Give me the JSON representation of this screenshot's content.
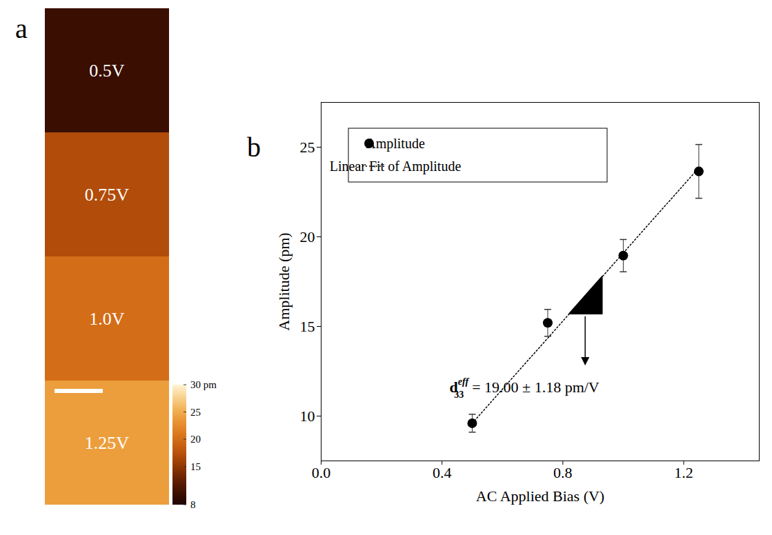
{
  "chart_data": [
    {
      "type": "image_strips",
      "panel": "a",
      "maps": [
        {
          "label": "0.5V",
          "value": 10
        },
        {
          "label": "0.75V",
          "value": 17
        },
        {
          "label": "1.0V",
          "value": 20
        },
        {
          "label": "1.25V",
          "value": 24
        }
      ],
      "colorbar": {
        "range": [
          8,
          30
        ],
        "ticks": [
          8,
          15,
          20,
          25,
          {
            "value": 30,
            "label": "30 pm"
          }
        ]
      }
    },
    {
      "type": "scatter",
      "panel": "b",
      "x_label": "AC Applied Bias (V)",
      "y_label": "Amplitude (pm)",
      "x": [
        0.5,
        0.75,
        1.0,
        1.25
      ],
      "series": [
        {
          "name": "Amplitude",
          "color": "#000000",
          "marker": "circle",
          "values": [
            9.6,
            15.2,
            18.95,
            23.65
          ],
          "errors": [
            0.5,
            0.75,
            0.9,
            1.5
          ]
        },
        {
          "name": "Linear Fit of Amplitude",
          "type": "line",
          "line_style": "dotted",
          "color": "#000000",
          "x": [
            0.5,
            1.25
          ],
          "values": [
            9.6,
            23.85
          ]
        }
      ],
      "xlim": [
        0,
        1.45
      ],
      "xticks": [
        {
          "value": 0,
          "label": "0.0"
        },
        0.4,
        0.8,
        1.2
      ],
      "ylim": [
        7.5,
        27.5
      ],
      "yticks": [
        10,
        15,
        20,
        25
      ],
      "legend": "top-left",
      "slope_triangle": {
        "x": [
          0.82,
          0.93
        ],
        "y": [
          15.7,
          17.8
        ]
      },
      "annotation": {
        "symbol": "d",
        "subscript": "33",
        "superscript": "eff",
        "text": "= 19.00 ± 1.18 pm/V"
      }
    }
  ]
}
